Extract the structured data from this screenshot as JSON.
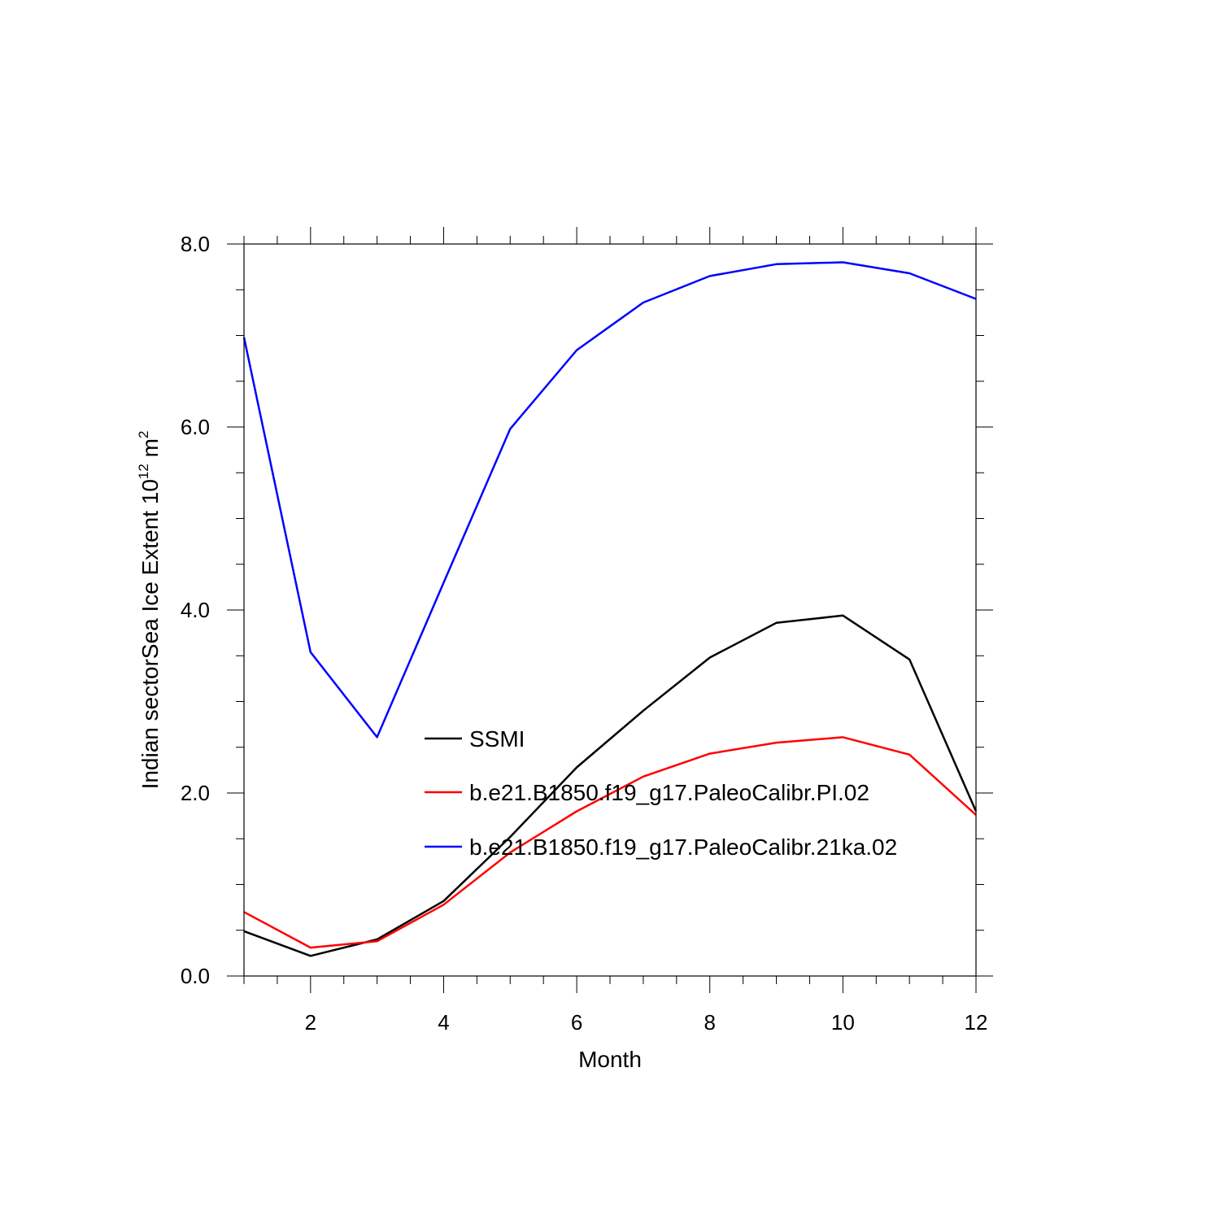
{
  "chart_data": {
    "type": "line",
    "x": [
      1,
      2,
      3,
      4,
      5,
      6,
      7,
      8,
      9,
      10,
      11,
      12
    ],
    "xlabel": "Month",
    "ylabel_main": "Indian sectorSea Ice Extent 10",
    "ylabel_exp": "12",
    "ylabel_unit": " m",
    "ylabel_unit_exp": "2",
    "xlim": [
      1,
      12
    ],
    "ylim": [
      0,
      8
    ],
    "xticks": [
      2,
      4,
      6,
      8,
      10,
      12
    ],
    "xtick_labels": [
      "2",
      "4",
      "6",
      "8",
      "10",
      "12"
    ],
    "yticks": [
      0,
      2,
      4,
      6,
      8
    ],
    "ytick_labels": [
      "0.0",
      "2.0",
      "4.0",
      "6.0",
      "8.0"
    ],
    "grid": false,
    "legend_position": "center",
    "series": [
      {
        "name": "SSMI",
        "color": "#000000",
        "values": [
          0.49,
          0.22,
          0.4,
          0.82,
          1.52,
          2.28,
          2.9,
          3.48,
          3.86,
          3.94,
          3.46,
          1.8
        ]
      },
      {
        "name": "b.e21.B1850.f19_g17.PaleoCalibr.PI.02",
        "color": "#ff0000",
        "values": [
          0.7,
          0.31,
          0.38,
          0.78,
          1.35,
          1.8,
          2.18,
          2.43,
          2.55,
          2.61,
          2.42,
          1.76
        ]
      },
      {
        "name": "b.e21.B1850.f19_g17.PaleoCalibr.21ka.02",
        "color": "#0000ff",
        "values": [
          6.98,
          3.54,
          2.61,
          4.3,
          5.98,
          6.84,
          7.36,
          7.65,
          7.78,
          7.8,
          7.68,
          7.4
        ]
      }
    ]
  }
}
